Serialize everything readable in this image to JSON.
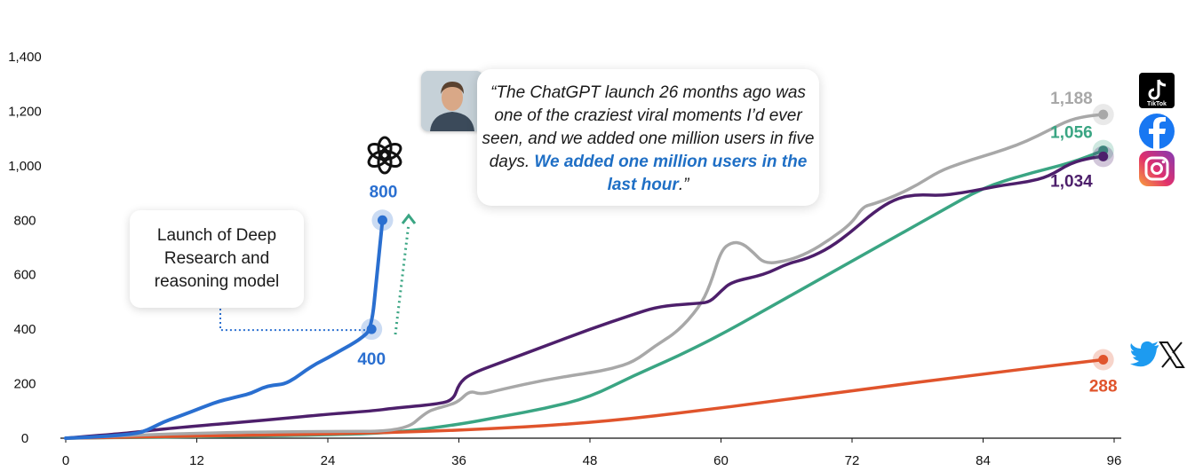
{
  "colors": {
    "chatgpt": "#2a6fd0",
    "instagram": "#4d1f6b",
    "tiktok": "#a8a8a8",
    "facebook": "#3aa583",
    "twitter": "#e0542c",
    "dotted_green": "#3aa583"
  },
  "chart_data": {
    "type": "line",
    "xlabel": "",
    "ylabel": "",
    "xlim": [
      0,
      96
    ],
    "ylim": [
      0,
      1400
    ],
    "x_ticks": [
      0,
      12,
      24,
      36,
      48,
      60,
      72,
      84,
      96
    ],
    "y_ticks": [
      "0",
      "200",
      "400",
      "600",
      "800",
      "1,000",
      "1,200",
      "1,400"
    ],
    "grid": false,
    "series": [
      {
        "key": "chatgpt",
        "icon": "openai-icon",
        "points": [
          [
            0,
            0
          ],
          [
            2,
            3
          ],
          [
            4,
            8
          ],
          [
            6,
            15
          ],
          [
            7,
            22
          ],
          [
            8,
            40
          ],
          [
            9,
            60
          ],
          [
            10,
            75
          ],
          [
            11,
            90
          ],
          [
            12,
            105
          ],
          [
            13,
            120
          ],
          [
            14,
            135
          ],
          [
            15,
            145
          ],
          [
            16,
            155
          ],
          [
            17,
            165
          ],
          [
            18,
            185
          ],
          [
            19,
            195
          ],
          [
            20,
            198
          ],
          [
            21,
            220
          ],
          [
            22,
            250
          ],
          [
            23,
            275
          ],
          [
            24,
            295
          ],
          [
            25,
            318
          ],
          [
            26,
            340
          ],
          [
            27,
            365
          ],
          [
            28,
            400
          ],
          [
            28.5,
            600
          ],
          [
            29,
            800
          ]
        ]
      },
      {
        "key": "instagram",
        "icon": "instagram-icon",
        "points": [
          [
            0,
            0
          ],
          [
            6,
            20
          ],
          [
            8,
            30
          ],
          [
            12,
            45
          ],
          [
            18,
            65
          ],
          [
            24,
            88
          ],
          [
            28,
            100
          ],
          [
            30,
            110
          ],
          [
            34,
            125
          ],
          [
            35.5,
            140
          ],
          [
            36,
            200
          ],
          [
            37,
            235
          ],
          [
            40,
            280
          ],
          [
            44,
            340
          ],
          [
            48,
            400
          ],
          [
            52,
            455
          ],
          [
            54,
            480
          ],
          [
            56,
            490
          ],
          [
            58,
            495
          ],
          [
            59,
            500
          ],
          [
            60,
            540
          ],
          [
            61,
            575
          ],
          [
            64,
            600
          ],
          [
            66,
            640
          ],
          [
            68,
            660
          ],
          [
            70,
            700
          ],
          [
            72,
            760
          ],
          [
            74,
            830
          ],
          [
            76,
            880
          ],
          [
            78,
            895
          ],
          [
            80,
            890
          ],
          [
            82,
            900
          ],
          [
            84,
            915
          ],
          [
            86,
            930
          ],
          [
            88,
            940
          ],
          [
            90,
            960
          ],
          [
            92,
            1010
          ],
          [
            94,
            1030
          ],
          [
            95,
            1034
          ]
        ]
      },
      {
        "key": "tiktok",
        "icon": "tiktok-icon",
        "points": [
          [
            0,
            0
          ],
          [
            12,
            20
          ],
          [
            24,
            25
          ],
          [
            31,
            25
          ],
          [
            33,
            95
          ],
          [
            34,
            110
          ],
          [
            35,
            120
          ],
          [
            36,
            135
          ],
          [
            37,
            175
          ],
          [
            38,
            160
          ],
          [
            40,
            180
          ],
          [
            44,
            215
          ],
          [
            48,
            240
          ],
          [
            50,
            255
          ],
          [
            52,
            280
          ],
          [
            54,
            340
          ],
          [
            56,
            390
          ],
          [
            58,
            480
          ],
          [
            59,
            560
          ],
          [
            60,
            690
          ],
          [
            61,
            720
          ],
          [
            62,
            715
          ],
          [
            63,
            680
          ],
          [
            64,
            640
          ],
          [
            66,
            650
          ],
          [
            68,
            680
          ],
          [
            70,
            730
          ],
          [
            72,
            790
          ],
          [
            73,
            850
          ],
          [
            74,
            860
          ],
          [
            76,
            890
          ],
          [
            78,
            930
          ],
          [
            80,
            980
          ],
          [
            82,
            1010
          ],
          [
            84,
            1035
          ],
          [
            86,
            1060
          ],
          [
            88,
            1090
          ],
          [
            90,
            1130
          ],
          [
            92,
            1170
          ],
          [
            94,
            1185
          ],
          [
            95,
            1188
          ]
        ]
      },
      {
        "key": "facebook",
        "icon": "facebook-icon",
        "points": [
          [
            0,
            0
          ],
          [
            12,
            5
          ],
          [
            24,
            12
          ],
          [
            30,
            20
          ],
          [
            36,
            50
          ],
          [
            40,
            80
          ],
          [
            44,
            110
          ],
          [
            48,
            150
          ],
          [
            52,
            230
          ],
          [
            56,
            300
          ],
          [
            60,
            380
          ],
          [
            64,
            470
          ],
          [
            68,
            560
          ],
          [
            72,
            650
          ],
          [
            76,
            740
          ],
          [
            80,
            830
          ],
          [
            84,
            920
          ],
          [
            88,
            970
          ],
          [
            92,
            1010
          ],
          [
            95,
            1056
          ]
        ]
      },
      {
        "key": "twitter",
        "icon": "twitter-icon",
        "points": [
          [
            0,
            0
          ],
          [
            12,
            8
          ],
          [
            24,
            15
          ],
          [
            36,
            28
          ],
          [
            48,
            55
          ],
          [
            60,
            110
          ],
          [
            72,
            175
          ],
          [
            84,
            235
          ],
          [
            90,
            265
          ],
          [
            95,
            288
          ]
        ]
      }
    ],
    "end_labels": [
      {
        "key": "tiktok",
        "text": "1,188",
        "x": 95,
        "y": 1188
      },
      {
        "key": "facebook",
        "text": "1,056",
        "x": 95,
        "y": 1056
      },
      {
        "key": "instagram",
        "text": "1,034",
        "x": 95,
        "y": 1034
      },
      {
        "key": "twitter",
        "text": "288",
        "x": 95,
        "y": 288
      },
      {
        "key": "chatgpt",
        "text": "800",
        "x": 29,
        "y": 800
      },
      {
        "key": "chatgpt",
        "text": "400",
        "x": 28,
        "y": 400
      }
    ],
    "annotations": {
      "callout": "Launch of Deep\nResearch and\nreasoning model",
      "quote_part1": "“The ChatGPT launch 26 months ago was one of the craziest viral moments I’d ever seen, and we added one million users in five days.",
      "quote_highlight": "We added one million users in the last hour",
      "quote_end": ".”"
    }
  },
  "icons": {
    "tiktok_label": "TikTok"
  }
}
